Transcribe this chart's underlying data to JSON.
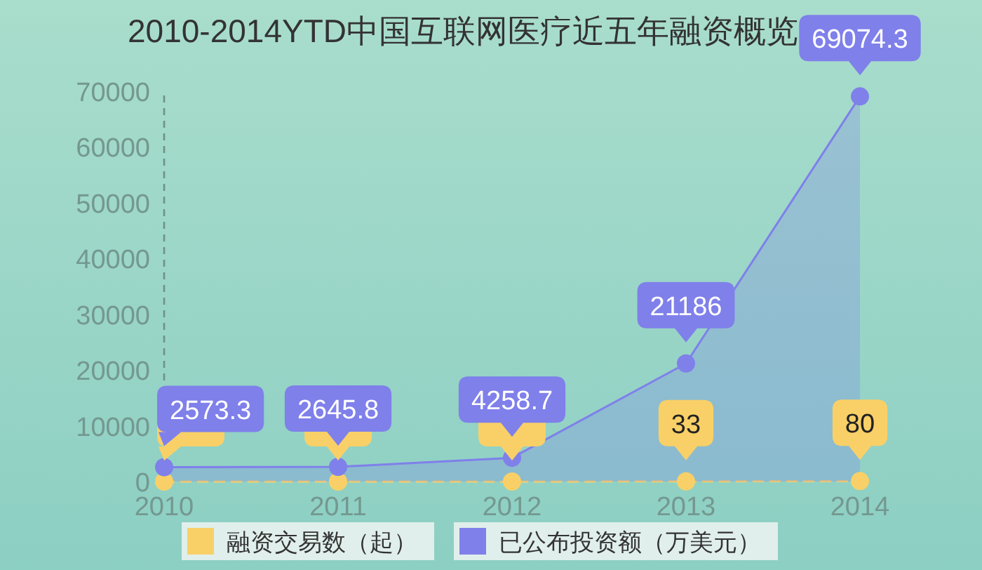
{
  "chart_data": {
    "type": "line",
    "title": "2010-2014YTD中国互联网医疗近五年融资概览",
    "categories": [
      "2010",
      "2011",
      "2012",
      "2013",
      "2014"
    ],
    "series": [
      {
        "name": "融资交易数（起）",
        "type": "line",
        "color": "#f9d067",
        "line_style": "dashed",
        "values": [
          0,
          0,
          0,
          33,
          80
        ],
        "value_labels": [
          null,
          null,
          null,
          "33",
          "80"
        ]
      },
      {
        "name": "已公布投资额（万美元）",
        "type": "area",
        "color": "#7f80ea",
        "values": [
          2573.3,
          2645.8,
          4258.7,
          21186,
          69074.3
        ],
        "value_labels": [
          "2573.3",
          "2645.8",
          "4258.7",
          "21186",
          "69074.3"
        ]
      }
    ],
    "ylim": [
      0,
      70000
    ],
    "yticks": [
      0,
      10000,
      20000,
      30000,
      40000,
      50000,
      60000,
      70000
    ],
    "marker": "circle",
    "legend": "bottom"
  }
}
